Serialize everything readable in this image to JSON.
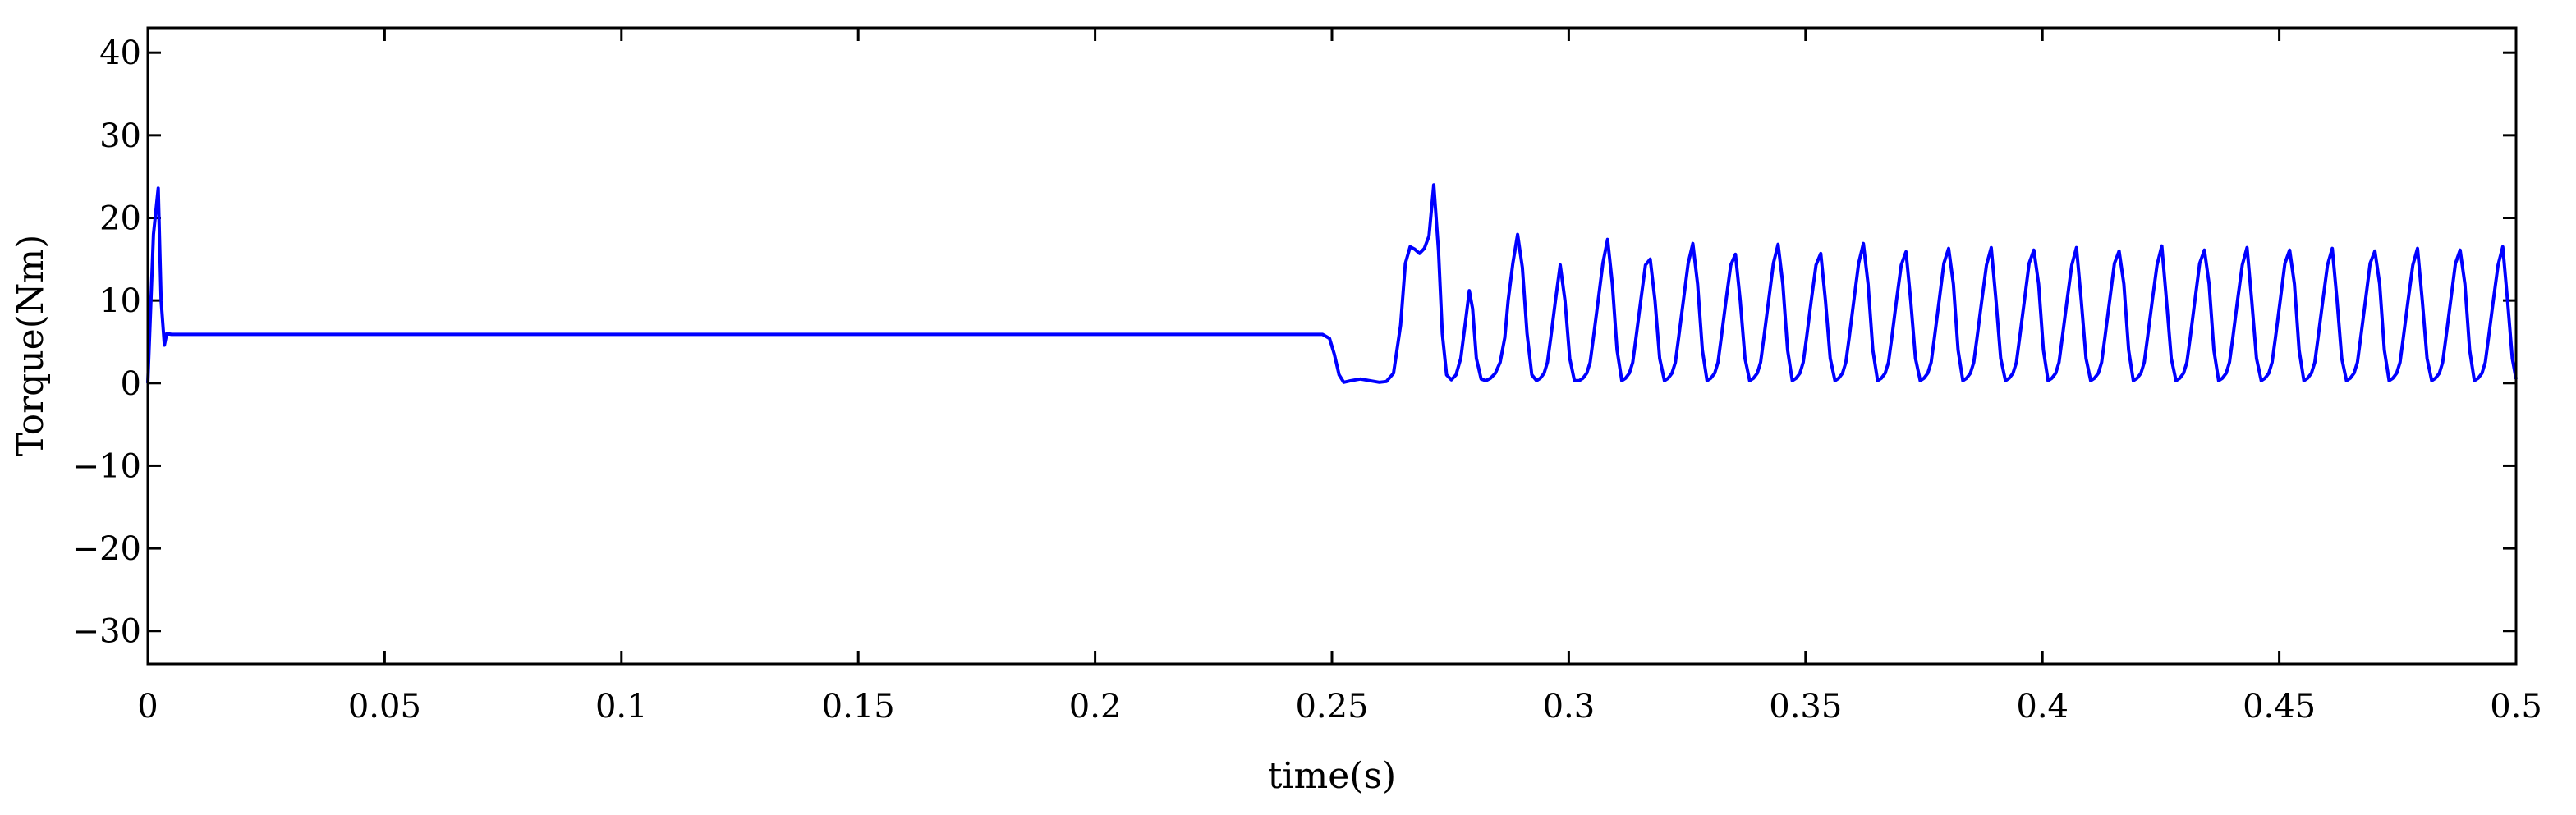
{
  "chart_data": {
    "type": "line",
    "title": "",
    "xlabel": "time(s)",
    "ylabel": "Torque(Nm)",
    "xlim": [
      0,
      0.5
    ],
    "ylim": [
      -34,
      43
    ],
    "grid": false,
    "legend": "none",
    "x_ticks": [
      {
        "value": 0,
        "label": "0"
      },
      {
        "value": 0.05,
        "label": "0.05"
      },
      {
        "value": 0.1,
        "label": "0.1"
      },
      {
        "value": 0.15,
        "label": "0.15"
      },
      {
        "value": 0.2,
        "label": "0.2"
      },
      {
        "value": 0.25,
        "label": "0.25"
      },
      {
        "value": 0.3,
        "label": "0.3"
      },
      {
        "value": 0.35,
        "label": "0.35"
      },
      {
        "value": 0.4,
        "label": "0.4"
      },
      {
        "value": 0.45,
        "label": "0.45"
      },
      {
        "value": 0.5,
        "label": "0.5"
      }
    ],
    "y_ticks": [
      {
        "value": -30,
        "label": "−30"
      },
      {
        "value": -20,
        "label": "−20"
      },
      {
        "value": -10,
        "label": "−10"
      },
      {
        "value": 0,
        "label": "0"
      },
      {
        "value": 10,
        "label": "10"
      },
      {
        "value": 20,
        "label": "20"
      },
      {
        "value": 30,
        "label": "30"
      },
      {
        "value": 40,
        "label": "40"
      }
    ],
    "series": [
      {
        "color": "#0000ff",
        "x": [
          0,
          0.0012,
          0.0022,
          0.0028,
          0.0035,
          0.004,
          0.005,
          0.02,
          0.05,
          0.1,
          0.15,
          0.2,
          0.248,
          0.2495,
          0.2505,
          0.2515,
          0.2525,
          0.254,
          0.256,
          0.258,
          0.26,
          0.2615,
          0.263,
          0.2645,
          0.2655,
          0.2665,
          0.2675,
          0.2685,
          0.2695,
          0.2705,
          0.2715,
          0.2725,
          0.2733,
          0.2742,
          0.2752,
          0.2762,
          0.2772,
          0.2782,
          0.279,
          0.2797,
          0.2805,
          0.2815,
          0.2825,
          0.2835,
          0.2845,
          0.2855,
          0.2865,
          0.2872,
          0.2882,
          0.2892,
          0.2902,
          0.2912,
          0.2922,
          0.2932,
          0.294,
          0.2948,
          0.2955,
          0.2962,
          0.2972,
          0.2982,
          0.2992,
          0.3002,
          0.3012,
          0.3022,
          0.303,
          0.3038,
          0.3045,
          0.3052,
          0.3062,
          0.3072,
          0.3082,
          0.3092,
          0.3102,
          0.3112,
          0.312,
          0.3128,
          0.3135,
          0.3142,
          0.3152,
          0.3162,
          0.3172,
          0.3182,
          0.3192,
          0.3202,
          0.321,
          0.3218,
          0.3225,
          0.3232,
          0.3242,
          0.3252,
          0.3262,
          0.3272,
          0.3282,
          0.3292,
          0.33,
          0.3308,
          0.3315,
          0.3322,
          0.3332,
          0.3342,
          0.3352,
          0.3362,
          0.3372,
          0.3382,
          0.339,
          0.3398,
          0.3405,
          0.3412,
          0.3422,
          0.3432,
          0.3442,
          0.3452,
          0.3462,
          0.3472,
          0.348,
          0.3488,
          0.3495,
          0.3502,
          0.3512,
          0.3522,
          0.3532,
          0.3542,
          0.3552,
          0.3562,
          0.357,
          0.3578,
          0.3585,
          0.3592,
          0.3602,
          0.3612,
          0.3622,
          0.3632,
          0.3642,
          0.3652,
          0.366,
          0.3668,
          0.3675,
          0.3682,
          0.3692,
          0.3702,
          0.3712,
          0.3722,
          0.3732,
          0.3742,
          0.375,
          0.3758,
          0.3765,
          0.3772,
          0.3782,
          0.3792,
          0.3802,
          0.3812,
          0.3822,
          0.3832,
          0.384,
          0.3848,
          0.3855,
          0.3862,
          0.3872,
          0.3882,
          0.3892,
          0.3902,
          0.3912,
          0.3922,
          0.393,
          0.3938,
          0.3945,
          0.3952,
          0.3962,
          0.3972,
          0.3982,
          0.3992,
          0.4002,
          0.4012,
          0.402,
          0.4028,
          0.4035,
          0.4042,
          0.4052,
          0.4062,
          0.4072,
          0.4082,
          0.4092,
          0.4102,
          0.411,
          0.4118,
          0.4125,
          0.4132,
          0.4142,
          0.4152,
          0.4162,
          0.4172,
          0.4182,
          0.4192,
          0.42,
          0.4208,
          0.4215,
          0.4222,
          0.4232,
          0.4242,
          0.4252,
          0.4262,
          0.4272,
          0.4282,
          0.429,
          0.4298,
          0.4305,
          0.4312,
          0.4322,
          0.4332,
          0.4342,
          0.4352,
          0.4362,
          0.4372,
          0.438,
          0.4388,
          0.4395,
          0.4402,
          0.4412,
          0.4422,
          0.4432,
          0.4442,
          0.4452,
          0.4462,
          0.447,
          0.4478,
          0.4485,
          0.4492,
          0.4502,
          0.4512,
          0.4522,
          0.4532,
          0.4542,
          0.4552,
          0.456,
          0.4568,
          0.4575,
          0.4582,
          0.4592,
          0.4602,
          0.4612,
          0.4622,
          0.4632,
          0.4642,
          0.465,
          0.4658,
          0.4665,
          0.4672,
          0.4682,
          0.4692,
          0.4702,
          0.4712,
          0.4722,
          0.4732,
          0.474,
          0.4748,
          0.4755,
          0.4762,
          0.4772,
          0.4782,
          0.4792,
          0.4802,
          0.4812,
          0.4822,
          0.483,
          0.4838,
          0.4845,
          0.4852,
          0.4862,
          0.4872,
          0.4882,
          0.4892,
          0.4902,
          0.4912,
          0.492,
          0.4928,
          0.4935,
          0.4942,
          0.4952,
          0.4962,
          0.4972,
          0.4982,
          0.4992,
          0.5
        ],
        "y": [
          0,
          18,
          23.6,
          10,
          4.6,
          6.0,
          5.9,
          5.9,
          5.9,
          5.9,
          5.9,
          5.9,
          5.9,
          5.4,
          3.5,
          1.0,
          0.1,
          0.3,
          0.5,
          0.3,
          0.1,
          0.2,
          1.2,
          7,
          14.5,
          16.5,
          16.2,
          15.7,
          16.3,
          17.8,
          24.0,
          16,
          6,
          1.0,
          0.4,
          1.0,
          3.0,
          7.5,
          11.2,
          9.0,
          3.0,
          0.5,
          0.3,
          0.6,
          1.2,
          2.5,
          5.5,
          10.0,
          14.5,
          18.0,
          14,
          6,
          1.0,
          0.3,
          0.6,
          1.2,
          2.5,
          5.5,
          10.0,
          14.3,
          10,
          3,
          0.3,
          0.3,
          0.6,
          1.2,
          2.5,
          5.5,
          10.0,
          14.5,
          17.4,
          12,
          4,
          0.3,
          0.6,
          1.2,
          2.5,
          5.5,
          10.0,
          14.3,
          15.0,
          10,
          3,
          0.3,
          0.6,
          1.2,
          2.5,
          5.5,
          10.0,
          14.5,
          16.9,
          12,
          4,
          0.3,
          0.6,
          1.2,
          2.5,
          5.5,
          10.0,
          14.3,
          15.6,
          10,
          3,
          0.3,
          0.6,
          1.2,
          2.5,
          5.5,
          10.0,
          14.5,
          16.8,
          12,
          4,
          0.3,
          0.6,
          1.2,
          2.5,
          5.5,
          10.0,
          14.3,
          15.7,
          10,
          3,
          0.3,
          0.6,
          1.2,
          2.5,
          5.5,
          10.0,
          14.5,
          16.9,
          12,
          4,
          0.3,
          0.6,
          1.2,
          2.5,
          5.5,
          10.0,
          14.3,
          15.9,
          10,
          3,
          0.3,
          0.6,
          1.2,
          2.5,
          5.5,
          10.0,
          14.5,
          16.3,
          12,
          4,
          0.3,
          0.6,
          1.2,
          2.5,
          5.5,
          10.0,
          14.3,
          16.4,
          10,
          3,
          0.3,
          0.6,
          1.2,
          2.5,
          5.5,
          10.0,
          14.5,
          16.1,
          12,
          4,
          0.3,
          0.6,
          1.2,
          2.5,
          5.5,
          10.0,
          14.3,
          16.4,
          10,
          3,
          0.3,
          0.6,
          1.2,
          2.5,
          5.5,
          10.0,
          14.5,
          16.0,
          12,
          4,
          0.3,
          0.6,
          1.2,
          2.5,
          5.5,
          10.0,
          14.3,
          16.6,
          10,
          3,
          0.3,
          0.6,
          1.2,
          2.5,
          5.5,
          10.0,
          14.5,
          16.1,
          12,
          4,
          0.3,
          0.6,
          1.2,
          2.5,
          5.5,
          10.0,
          14.3,
          16.4,
          10,
          3,
          0.3,
          0.6,
          1.2,
          2.5,
          5.5,
          10.0,
          14.5,
          16.1,
          12,
          4,
          0.3,
          0.6,
          1.2,
          2.5,
          5.5,
          10.0,
          14.3,
          16.3,
          10,
          3,
          0.3,
          0.6,
          1.2,
          2.5,
          5.5,
          10.0,
          14.5,
          16.0,
          12,
          4,
          0.3,
          0.6,
          1.2,
          2.5,
          5.5,
          10.0,
          14.3,
          16.3,
          10,
          3,
          0.3,
          0.6,
          1.2,
          2.5,
          5.5,
          10.0,
          14.5,
          16.1,
          12,
          4,
          0.3,
          0.6,
          1.2,
          2.5,
          5.5,
          10.0,
          14.3,
          16.5,
          10,
          3,
          0.5
        ]
      }
    ]
  }
}
